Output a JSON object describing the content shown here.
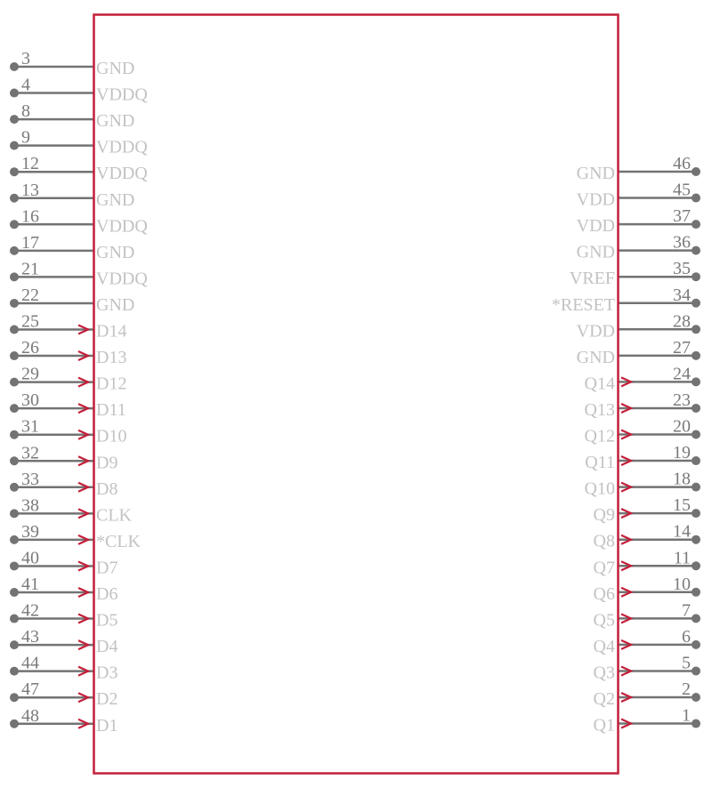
{
  "colors": {
    "body_outline": "#c41e3a",
    "pin": "#737373",
    "pin_number": "#7a7a7a",
    "pin_label": "#c2c2c2",
    "input_arrow": "#c41e3a"
  },
  "left_pins": [
    {
      "number": "3",
      "label": "GND",
      "arrow": false
    },
    {
      "number": "4",
      "label": "VDDQ",
      "arrow": false
    },
    {
      "number": "8",
      "label": "GND",
      "arrow": false
    },
    {
      "number": "9",
      "label": "VDDQ",
      "arrow": false
    },
    {
      "number": "12",
      "label": "VDDQ",
      "arrow": false
    },
    {
      "number": "13",
      "label": "GND",
      "arrow": false
    },
    {
      "number": "16",
      "label": "VDDQ",
      "arrow": false
    },
    {
      "number": "17",
      "label": "GND",
      "arrow": false
    },
    {
      "number": "21",
      "label": "VDDQ",
      "arrow": false
    },
    {
      "number": "22",
      "label": "GND",
      "arrow": false
    },
    {
      "number": "25",
      "label": "D14",
      "arrow": true
    },
    {
      "number": "26",
      "label": "D13",
      "arrow": true
    },
    {
      "number": "29",
      "label": "D12",
      "arrow": true
    },
    {
      "number": "30",
      "label": "D11",
      "arrow": true
    },
    {
      "number": "31",
      "label": "D10",
      "arrow": true
    },
    {
      "number": "32",
      "label": "D9",
      "arrow": true
    },
    {
      "number": "33",
      "label": "D8",
      "arrow": true
    },
    {
      "number": "38",
      "label": "CLK",
      "arrow": true
    },
    {
      "number": "39",
      "label": "*CLK",
      "arrow": true
    },
    {
      "number": "40",
      "label": "D7",
      "arrow": true
    },
    {
      "number": "41",
      "label": "D6",
      "arrow": true
    },
    {
      "number": "42",
      "label": "D5",
      "arrow": true
    },
    {
      "number": "43",
      "label": "D4",
      "arrow": true
    },
    {
      "number": "44",
      "label": "D3",
      "arrow": true
    },
    {
      "number": "47",
      "label": "D2",
      "arrow": true
    },
    {
      "number": "48",
      "label": "D1",
      "arrow": true
    }
  ],
  "right_pins": [
    {
      "number": "46",
      "label": "GND",
      "arrow": false
    },
    {
      "number": "45",
      "label": "VDD",
      "arrow": false
    },
    {
      "number": "37",
      "label": "VDD",
      "arrow": false
    },
    {
      "number": "36",
      "label": "GND",
      "arrow": false
    },
    {
      "number": "35",
      "label": "VREF",
      "arrow": false
    },
    {
      "number": "34",
      "label": "*RESET",
      "arrow": false
    },
    {
      "number": "28",
      "label": "VDD",
      "arrow": false
    },
    {
      "number": "27",
      "label": "GND",
      "arrow": false
    },
    {
      "number": "24",
      "label": "Q14",
      "arrow": true
    },
    {
      "number": "23",
      "label": "Q13",
      "arrow": true
    },
    {
      "number": "20",
      "label": "Q12",
      "arrow": true
    },
    {
      "number": "19",
      "label": "Q11",
      "arrow": true
    },
    {
      "number": "18",
      "label": "Q10",
      "arrow": true
    },
    {
      "number": "15",
      "label": "Q9",
      "arrow": true
    },
    {
      "number": "14",
      "label": "Q8",
      "arrow": true
    },
    {
      "number": "11",
      "label": "Q7",
      "arrow": true
    },
    {
      "number": "10",
      "label": "Q6",
      "arrow": true
    },
    {
      "number": "7",
      "label": "Q5",
      "arrow": true
    },
    {
      "number": "6",
      "label": "Q4",
      "arrow": true
    },
    {
      "number": "5",
      "label": "Q3",
      "arrow": true
    },
    {
      "number": "2",
      "label": "Q2",
      "arrow": true
    },
    {
      "number": "1",
      "label": "Q1",
      "arrow": true
    }
  ]
}
